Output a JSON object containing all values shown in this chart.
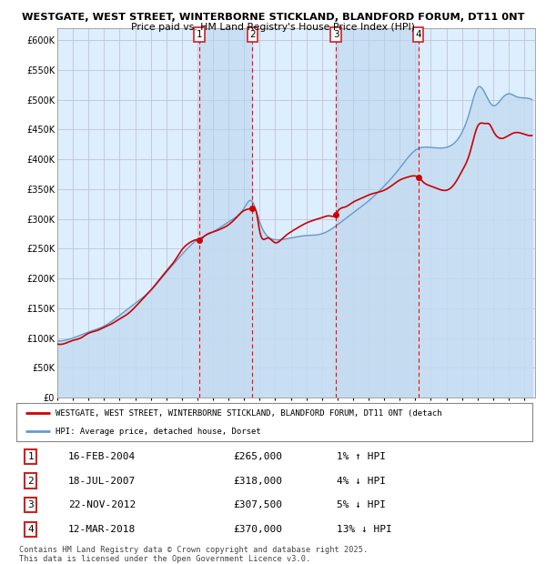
{
  "title": "WESTGATE, WEST STREET, WINTERBORNE STICKLAND, BLANDFORD FORUM, DT11 0NT",
  "subtitle": "Price paid vs. HM Land Registry's House Price Index (HPI)",
  "ylim": [
    0,
    620000
  ],
  "yticks": [
    0,
    50000,
    100000,
    150000,
    200000,
    250000,
    300000,
    350000,
    400000,
    450000,
    500000,
    550000,
    600000
  ],
  "ytick_labels": [
    "£0",
    "£50K",
    "£100K",
    "£150K",
    "£200K",
    "£250K",
    "£300K",
    "£350K",
    "£400K",
    "£450K",
    "£500K",
    "£550K",
    "£600K"
  ],
  "sale_color": "#cc0000",
  "hpi_fill_color": "#c5dcf0",
  "hpi_line_color": "#6699cc",
  "background_color": "#ffffff",
  "plot_bg_color": "#ddeeff",
  "grid_color": "#bbbbcc",
  "shade_color": "#b8d4ec",
  "purchases": [
    {
      "date_num": 2004.12,
      "price": 265000,
      "label": "1"
    },
    {
      "date_num": 2007.54,
      "price": 318000,
      "label": "2"
    },
    {
      "date_num": 2012.9,
      "price": 307500,
      "label": "3"
    },
    {
      "date_num": 2018.19,
      "price": 370000,
      "label": "4"
    }
  ],
  "legend_sale_label": "WESTGATE, WEST STREET, WINTERBORNE STICKLAND, BLANDFORD FORUM, DT11 0NT (detach",
  "legend_hpi_label": "HPI: Average price, detached house, Dorset",
  "table_rows": [
    {
      "num": "1",
      "date": "16-FEB-2004",
      "price": "£265,000",
      "hpi": "1% ↑ HPI"
    },
    {
      "num": "2",
      "date": "18-JUL-2007",
      "price": "£318,000",
      "hpi": "4% ↓ HPI"
    },
    {
      "num": "3",
      "date": "22-NOV-2012",
      "price": "£307,500",
      "hpi": "5% ↓ HPI"
    },
    {
      "num": "4",
      "date": "12-MAR-2018",
      "price": "£370,000",
      "hpi": "13% ↓ HPI"
    }
  ],
  "footer": "Contains HM Land Registry data © Crown copyright and database right 2025.\nThis data is licensed under the Open Government Licence v3.0.",
  "hpi_data": {
    "x": [
      1995,
      1996,
      1997,
      1998,
      1999,
      2000,
      2001,
      2002,
      2003,
      2004,
      2005,
      2006,
      2007,
      2007.5,
      2008,
      2009,
      2010,
      2011,
      2012,
      2013,
      2014,
      2015,
      2016,
      2017,
      2018,
      2019,
      2020,
      2021,
      2021.5,
      2022,
      2022.5,
      2023,
      2023.5,
      2024,
      2024.5,
      2025,
      2025.5
    ],
    "y": [
      95000,
      100000,
      110000,
      120000,
      138000,
      158000,
      180000,
      210000,
      240000,
      265000,
      278000,
      295000,
      318000,
      330000,
      295000,
      265000,
      268000,
      272000,
      275000,
      290000,
      310000,
      330000,
      355000,
      385000,
      415000,
      420000,
      420000,
      445000,
      480000,
      520000,
      510000,
      490000,
      500000,
      510000,
      505000,
      503000,
      500000
    ]
  },
  "sale_data": {
    "x": [
      1995,
      1995.5,
      1996,
      1996.5,
      1997,
      1997.5,
      1998,
      1998.5,
      1999,
      1999.5,
      2000,
      2000.5,
      2001,
      2001.5,
      2002,
      2002.5,
      2003,
      2003.5,
      2004,
      2004.12,
      2004.5,
      2005,
      2005.5,
      2006,
      2006.5,
      2007,
      2007.2,
      2007.54,
      2007.8,
      2008,
      2008.5,
      2009,
      2009.5,
      2010,
      2010.5,
      2011,
      2011.5,
      2012,
      2012.5,
      2012.9,
      2013,
      2013.5,
      2014,
      2014.5,
      2015,
      2015.5,
      2016,
      2016.5,
      2017,
      2017.5,
      2018,
      2018.19,
      2018.5,
      2019,
      2019.5,
      2020,
      2020.5,
      2021,
      2021.5,
      2022,
      2022.5,
      2022.8,
      2023,
      2023.5,
      2024,
      2024.5,
      2025,
      2025.5
    ],
    "y": [
      90000,
      91000,
      96000,
      100000,
      108000,
      112000,
      118000,
      124000,
      132000,
      140000,
      152000,
      166000,
      180000,
      196000,
      212000,
      228000,
      248000,
      260000,
      265000,
      265000,
      272000,
      278000,
      283000,
      290000,
      302000,
      314000,
      316000,
      318000,
      310000,
      280000,
      268000,
      260000,
      268000,
      278000,
      286000,
      293000,
      298000,
      302000,
      305000,
      307500,
      312000,
      320000,
      328000,
      334000,
      340000,
      344000,
      348000,
      356000,
      365000,
      370000,
      372000,
      370000,
      362000,
      355000,
      350000,
      348000,
      358000,
      380000,
      410000,
      455000,
      460000,
      458000,
      448000,
      435000,
      440000,
      445000,
      442000,
      440000
    ]
  }
}
